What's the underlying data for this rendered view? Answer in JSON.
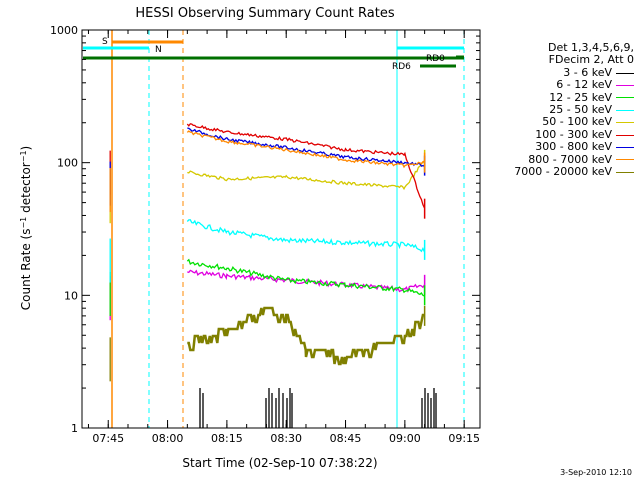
{
  "chart_data": {
    "type": "line",
    "title": "HESSI Observing Summary Count Rates",
    "xlabel": "Start Time (02-Sep-10 07:38:22)",
    "ylabel": "Count Rate (s⁻¹ detector⁻¹)",
    "y_scale": "log",
    "ylim": [
      1,
      1000
    ],
    "xlim": [
      "07:38:22",
      "09:19:00"
    ],
    "x_tick_labels": [
      "07:45",
      "08:00",
      "08:15",
      "08:30",
      "08:45",
      "09:00",
      "09:15"
    ],
    "y_tick_labels": [
      "1",
      "10",
      "100",
      "1000"
    ],
    "legend_header": [
      "Det 1,3,4,5,6,9,",
      "FDecim 2, Att 0"
    ],
    "legend_position": "right",
    "series": [
      {
        "name": "3 - 6 keV",
        "color": "#000000",
        "x": [
          "08:25",
          "08:30",
          "08:32",
          "09:05"
        ],
        "y": [
          1.6,
          1.6,
          1.6,
          1.6
        ]
      },
      {
        "name": "6 - 12 keV",
        "color": "#e000e0",
        "x": [
          "07:46",
          "08:05",
          "08:15",
          "08:30",
          "08:45",
          "09:00",
          "09:05"
        ],
        "y": [
          13,
          15,
          14,
          13,
          12,
          11,
          12
        ]
      },
      {
        "name": "12 - 25 keV",
        "color": "#00e000",
        "x": [
          "07:46",
          "08:05",
          "08:15",
          "08:30",
          "08:45",
          "09:00",
          "09:05"
        ],
        "y": [
          14,
          18,
          16,
          13,
          12,
          11,
          10
        ]
      },
      {
        "name": "25 - 50 keV",
        "color": "#00ffff",
        "x": [
          "07:46",
          "08:05",
          "08:15",
          "08:30",
          "08:45",
          "09:00",
          "09:05"
        ],
        "y": [
          25,
          36,
          30,
          26,
          25,
          24,
          22
        ]
      },
      {
        "name": "50 - 100 keV",
        "color": "#d4c800",
        "x": [
          "07:46",
          "08:05",
          "08:15",
          "08:30",
          "08:45",
          "09:00",
          "09:05"
        ],
        "y": [
          70,
          85,
          75,
          78,
          70,
          65,
          105
        ]
      },
      {
        "name": "100 - 300 keV",
        "color": "#e00000",
        "x": [
          "07:46",
          "08:05",
          "08:15",
          "08:30",
          "08:45",
          "09:00",
          "09:05"
        ],
        "y": [
          115,
          195,
          170,
          150,
          125,
          115,
          45
        ]
      },
      {
        "name": "300 - 800 keV",
        "color": "#0000e0",
        "x": [
          "07:46",
          "08:05",
          "08:15",
          "08:30",
          "08:45",
          "09:00",
          "09:05"
        ],
        "y": [
          95,
          180,
          150,
          130,
          110,
          100,
          95
        ]
      },
      {
        "name": "800 - 7000 keV",
        "color": "#ff8800",
        "x": [
          "07:46",
          "08:05",
          "08:15",
          "08:30",
          "08:45",
          "09:00",
          "09:05"
        ],
        "y": [
          85,
          170,
          145,
          125,
          105,
          95,
          100
        ]
      },
      {
        "name": "7000 - 20000 keV",
        "color": "#808000",
        "x": [
          "07:46",
          "08:05",
          "08:15",
          "08:25",
          "08:30",
          "08:35",
          "08:45",
          "09:00",
          "09:05"
        ],
        "y": [
          4.5,
          4.5,
          5.5,
          8,
          7,
          4,
          3.5,
          5,
          7
        ]
      }
    ],
    "annotations": [
      {
        "text": "S",
        "color": "#ff8800"
      },
      {
        "text": "N",
        "color": "#00ffff"
      },
      {
        "text": "RD0",
        "color": "#007000"
      },
      {
        "text": "RD6",
        "color": "#007000"
      }
    ],
    "grid": false
  },
  "footer": "3-Sep-2010 12:10"
}
